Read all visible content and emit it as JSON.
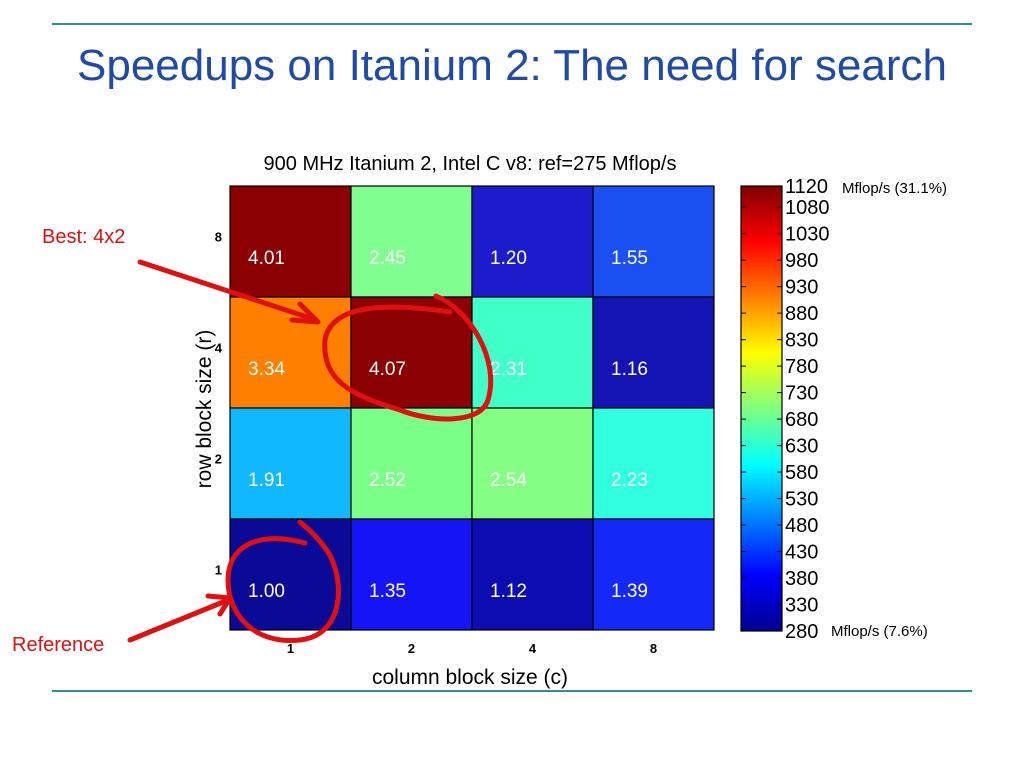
{
  "slide": {
    "title": "Speedups on Itanium 2: The need for search"
  },
  "annotations": {
    "best_label": "Best: 4x2",
    "reference_label": "Reference",
    "color": "#e01010"
  },
  "colorbar": {
    "max_note": "Mflop/s (31.1%)",
    "min_note": "Mflop/s (7.6%)"
  },
  "chart_data": {
    "type": "heatmap",
    "title": "900 MHz Itanium 2, Intel C v8: ref=275 Mflop/s",
    "xlabel": "column block size (c)",
    "ylabel": "row block size (r)",
    "x_categories": [
      "1",
      "2",
      "4",
      "8"
    ],
    "y_categories": [
      "8",
      "4",
      "2",
      "1"
    ],
    "cells": [
      [
        {
          "value": "4.01",
          "color": "#8b0000"
        },
        {
          "value": "2.45",
          "color": "#80ff90"
        },
        {
          "value": "1.20",
          "color": "#1c1ccc"
        },
        {
          "value": "1.55",
          "color": "#1a50f2"
        }
      ],
      [
        {
          "value": "3.34",
          "color": "#ff8000"
        },
        {
          "value": "4.07",
          "color": "#8b0000"
        },
        {
          "value": "2.31",
          "color": "#40ffc8"
        },
        {
          "value": "1.16",
          "color": "#1414b4"
        }
      ],
      [
        {
          "value": "1.91",
          "color": "#10b8ff"
        },
        {
          "value": "2.52",
          "color": "#7aff88"
        },
        {
          "value": "2.54",
          "color": "#84ff84"
        },
        {
          "value": "2.23",
          "color": "#30ffe0"
        }
      ],
      [
        {
          "value": "1.00",
          "color": "#0a0a96"
        },
        {
          "value": "1.35",
          "color": "#1414f4"
        },
        {
          "value": "1.12",
          "color": "#0c0cb0"
        },
        {
          "value": "1.39",
          "color": "#1428f8"
        }
      ]
    ],
    "colorbar": {
      "min": 280,
      "max": 1120,
      "ticks": [
        1120,
        1080,
        1030,
        980,
        930,
        880,
        830,
        780,
        730,
        680,
        630,
        580,
        530,
        480,
        430,
        380,
        330,
        280
      ],
      "colormap": "jet"
    }
  }
}
